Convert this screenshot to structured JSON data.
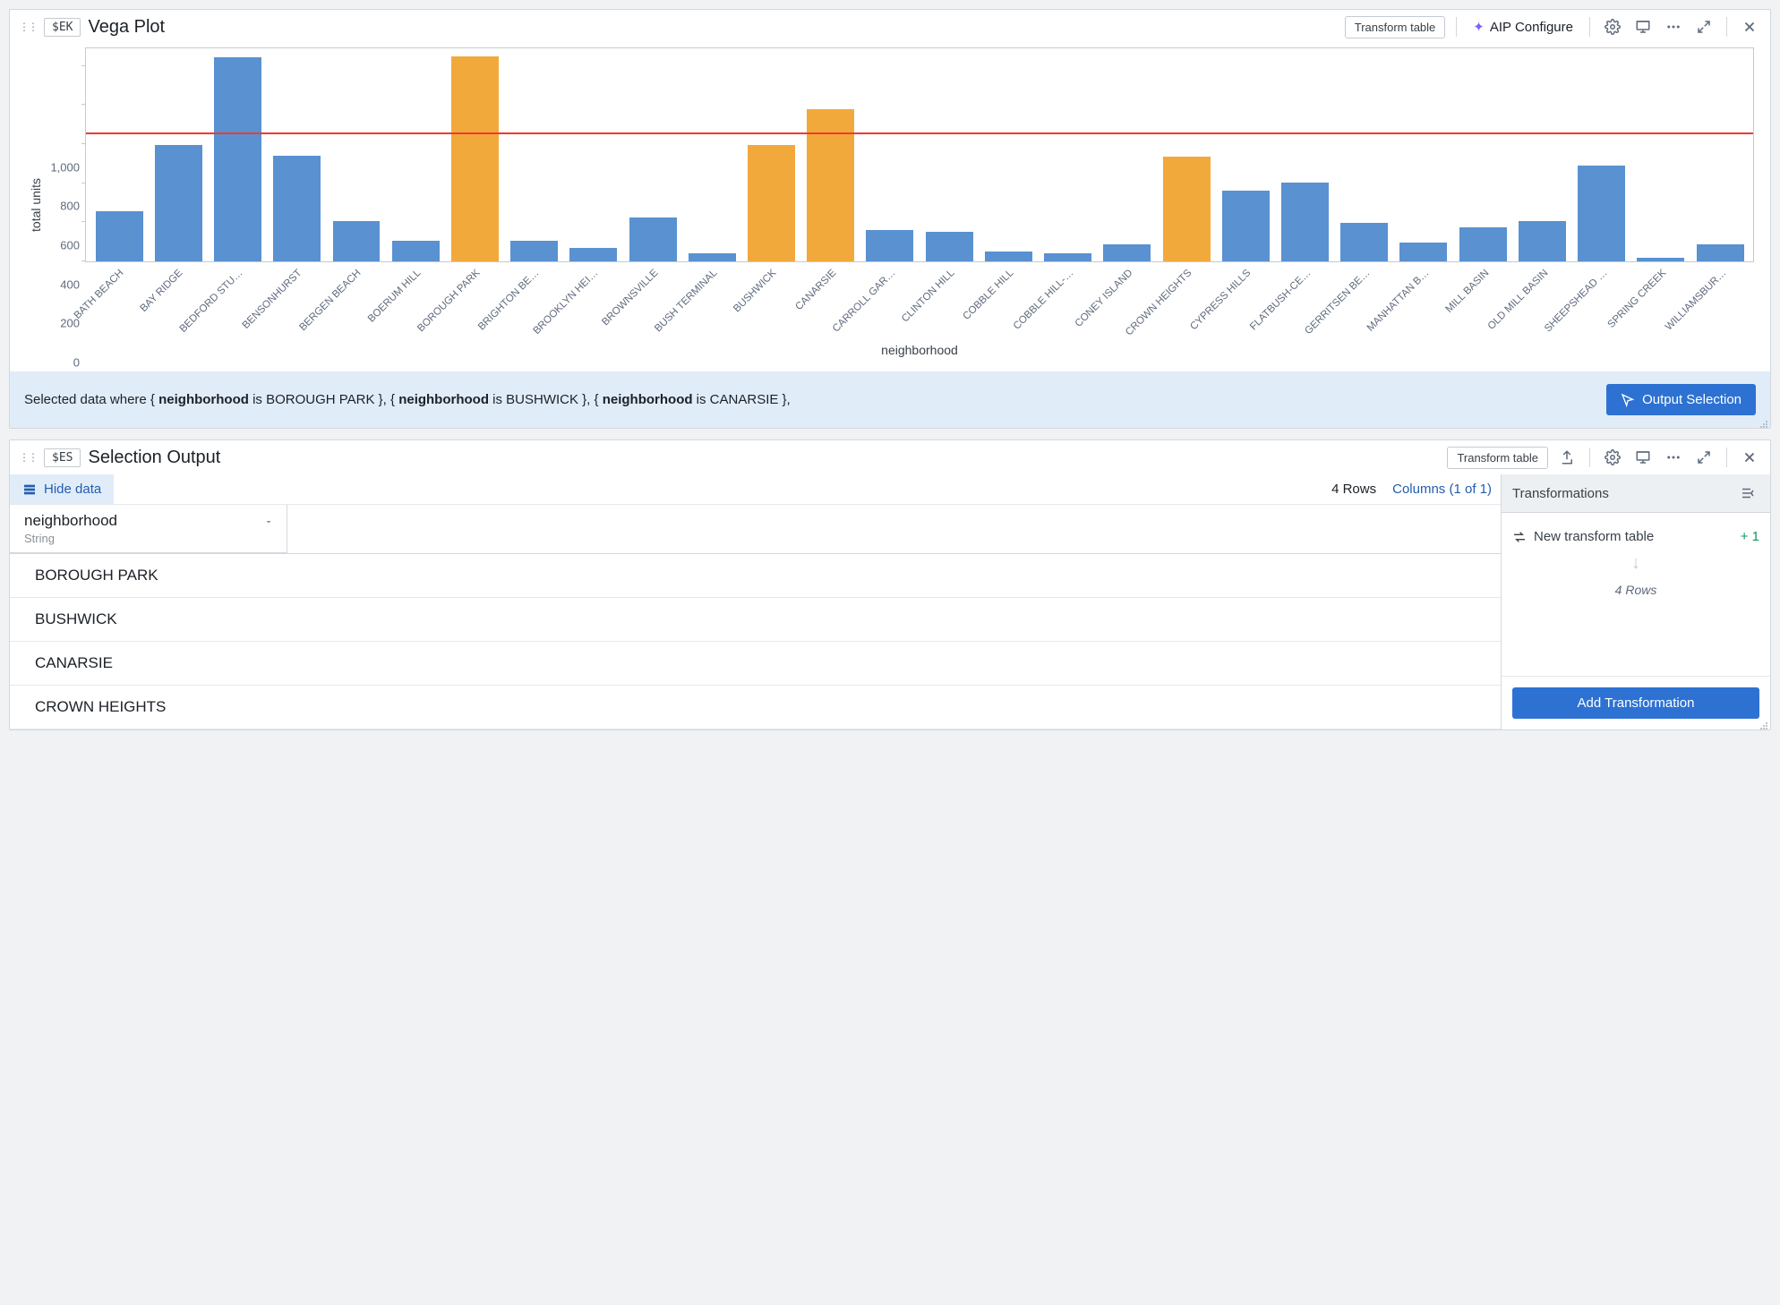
{
  "vega_panel": {
    "tag": "$EK",
    "title": "Vega Plot",
    "transform_table_btn": "Transform table",
    "aip_label": "AIP Configure"
  },
  "chart": {
    "type": "bar",
    "xlabel": "neighborhood",
    "ylabel": "total units",
    "ymax": 1100,
    "yticks": [
      0,
      200,
      400,
      600,
      800,
      1000
    ],
    "threshold": {
      "value": 650,
      "color": "#ef3b2c"
    },
    "default_color": "#5991d1",
    "selected_color": "#f2a93b",
    "categories": [
      {
        "label": "BATH BEACH",
        "value": 255,
        "selected": false
      },
      {
        "label": "BAY RIDGE",
        "value": 595,
        "selected": false
      },
      {
        "label": "BEDFORD STU…",
        "value": 1045,
        "selected": false
      },
      {
        "label": "BENSONHURST",
        "value": 540,
        "selected": false
      },
      {
        "label": "BERGEN BEACH",
        "value": 205,
        "selected": false
      },
      {
        "label": "BOERUM HILL",
        "value": 105,
        "selected": false
      },
      {
        "label": "BOROUGH PARK",
        "value": 1050,
        "selected": true
      },
      {
        "label": "BRIGHTON BE…",
        "value": 105,
        "selected": false
      },
      {
        "label": "BROOKLYN HEI…",
        "value": 70,
        "selected": false
      },
      {
        "label": "BROWNSVILLE",
        "value": 225,
        "selected": false
      },
      {
        "label": "BUSH TERMINAL",
        "value": 40,
        "selected": false
      },
      {
        "label": "BUSHWICK",
        "value": 595,
        "selected": true
      },
      {
        "label": "CANARSIE",
        "value": 780,
        "selected": true
      },
      {
        "label": "CARROLL GAR…",
        "value": 160,
        "selected": false
      },
      {
        "label": "CLINTON HILL",
        "value": 150,
        "selected": false
      },
      {
        "label": "COBBLE HILL",
        "value": 50,
        "selected": false
      },
      {
        "label": "COBBLE HILL-…",
        "value": 40,
        "selected": false
      },
      {
        "label": "CONEY ISLAND",
        "value": 85,
        "selected": false
      },
      {
        "label": "CROWN HEIGHTS",
        "value": 535,
        "selected": true
      },
      {
        "label": "CYPRESS HILLS",
        "value": 360,
        "selected": false
      },
      {
        "label": "FLATBUSH-CE…",
        "value": 405,
        "selected": false
      },
      {
        "label": "GERRITSEN BE…",
        "value": 195,
        "selected": false
      },
      {
        "label": "MANHATTAN B…",
        "value": 95,
        "selected": false
      },
      {
        "label": "MILL BASIN",
        "value": 175,
        "selected": false
      },
      {
        "label": "OLD MILL BASIN",
        "value": 205,
        "selected": false
      },
      {
        "label": "SHEEPSHEAD …",
        "value": 490,
        "selected": false
      },
      {
        "label": "SPRING CREEK",
        "value": 20,
        "selected": false
      },
      {
        "label": "WILLIAMSBUR…",
        "value": 85,
        "selected": false
      }
    ]
  },
  "selection": {
    "prefix": "Selected data where ",
    "field": "neighborhood",
    "values": [
      "BOROUGH PARK",
      "BUSHWICK",
      "CANARSIE"
    ],
    "output_btn": "Output Selection"
  },
  "output_panel": {
    "tag": "$ES",
    "title": "Selection Output",
    "transform_table_btn": "Transform table",
    "hide_data": "Hide data",
    "rows_label": "4 Rows",
    "columns_label": "Columns (1 of 1)",
    "column": {
      "name": "neighborhood",
      "type": "String"
    },
    "rows": [
      "BOROUGH PARK",
      "BUSHWICK",
      "CANARSIE",
      "CROWN HEIGHTS"
    ]
  },
  "transformations": {
    "title": "Transformations",
    "new_transform": "New transform table",
    "plus_one": "+ 1",
    "rows": "4 Rows",
    "add_btn": "Add Transformation"
  }
}
